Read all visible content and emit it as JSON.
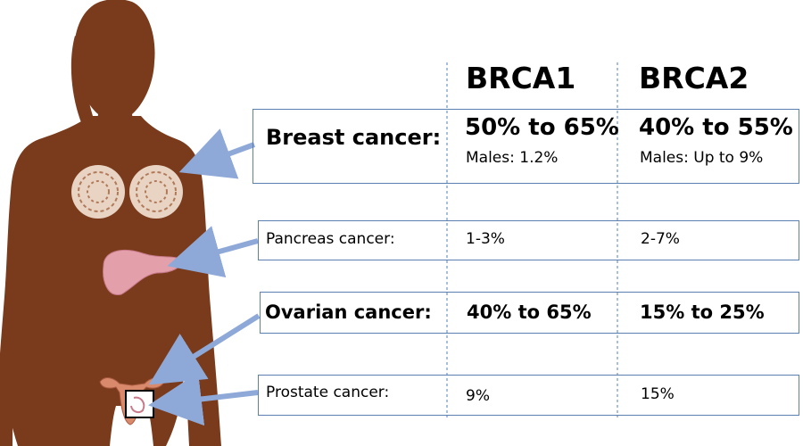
{
  "headers": {
    "col1": "BRCA1",
    "col2": "BRCA2"
  },
  "rows": [
    {
      "label": "Breast cancer:",
      "brca1": "50% to 65%",
      "brca1_note": "Males: 1.2%",
      "brca2": "40% to 55%",
      "brca2_note": "Males: Up to 9%"
    },
    {
      "label": "Pancreas cancer:",
      "brca1": "1-3%",
      "brca2": "2-7%"
    },
    {
      "label": "Ovarian cancer:",
      "brca1": "40% to 65%",
      "brca2": "15% to 25%"
    },
    {
      "label": "Prostate cancer:",
      "brca1": "9%",
      "brca2": "15%"
    }
  ],
  "colors": {
    "silhouette": "#7a3b1c",
    "arrow": "#8ea9d8",
    "box_border": "#5a7fb0",
    "divider": "#6f94c6",
    "breast_tissue": "#e9d3c2",
    "pancreas": "#e3a0ab",
    "uterus": "#d98a6c"
  }
}
